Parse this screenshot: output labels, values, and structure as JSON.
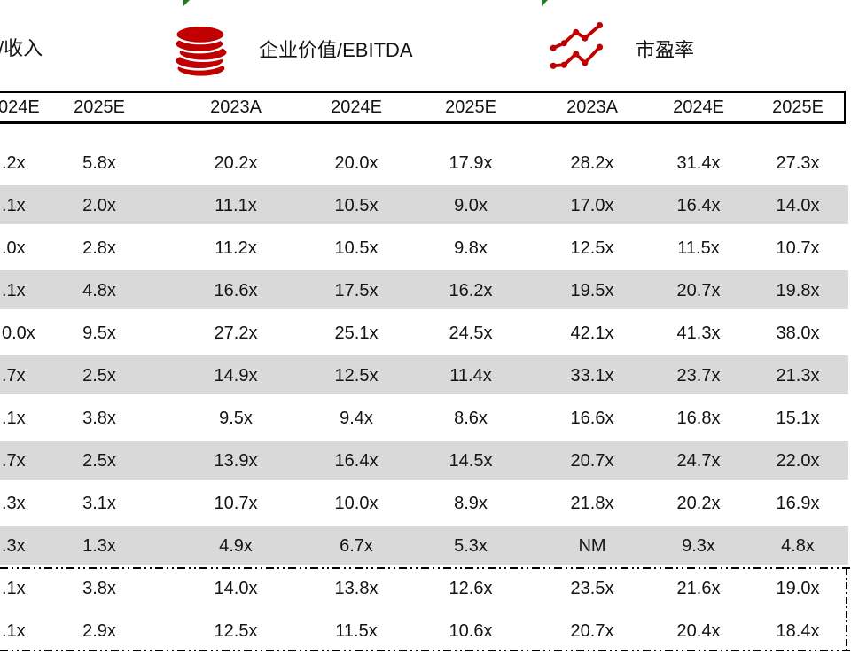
{
  "colors": {
    "accent_red": "#C00000",
    "row_stripe_gray": "#D9D9D9",
    "marker_green": "#1E7D1E",
    "line_black": "#000000",
    "text": "#141414"
  },
  "legend": {
    "partial_left_label": "/收入",
    "items": [
      {
        "icon": "coins-icon",
        "label": "企业价值/EBITDA"
      },
      {
        "icon": "line-chart-icon",
        "label": "市盈率"
      }
    ]
  },
  "table": {
    "headers": [
      "024E",
      "2025E",
      "2023A",
      "2024E",
      "2025E",
      "2023A",
      "2024E",
      "2025E"
    ],
    "rows": [
      [
        ".2x",
        "5.8x",
        "20.2x",
        "20.0x",
        "17.9x",
        "28.2x",
        "31.4x",
        "27.3x"
      ],
      [
        ".1x",
        "2.0x",
        "11.1x",
        "10.5x",
        "9.0x",
        "17.0x",
        "16.4x",
        "14.0x"
      ],
      [
        ".0x",
        "2.8x",
        "11.2x",
        "10.5x",
        "9.8x",
        "12.5x",
        "11.5x",
        "10.7x"
      ],
      [
        ".1x",
        "4.8x",
        "16.6x",
        "17.5x",
        "16.2x",
        "19.5x",
        "20.7x",
        "19.8x"
      ],
      [
        "0.0x",
        "9.5x",
        "27.2x",
        "25.1x",
        "24.5x",
        "42.1x",
        "41.3x",
        "38.0x"
      ],
      [
        ".7x",
        "2.5x",
        "14.9x",
        "12.5x",
        "11.4x",
        "33.1x",
        "23.7x",
        "21.3x"
      ],
      [
        ".1x",
        "3.8x",
        "9.5x",
        "9.4x",
        "8.6x",
        "16.6x",
        "16.8x",
        "15.1x"
      ],
      [
        ".7x",
        "2.5x",
        "13.9x",
        "16.4x",
        "14.5x",
        "20.7x",
        "24.7x",
        "22.0x"
      ],
      [
        ".3x",
        "3.1x",
        "10.7x",
        "10.0x",
        "8.9x",
        "21.8x",
        "20.2x",
        "16.9x"
      ],
      [
        ".3x",
        "1.3x",
        "4.9x",
        "6.7x",
        "5.3x",
        "NM",
        "9.3x",
        "4.8x"
      ],
      [
        ".1x",
        "3.8x",
        "14.0x",
        "13.8x",
        "12.6x",
        "23.5x",
        "21.6x",
        "19.0x"
      ],
      [
        ".1x",
        "2.9x",
        "12.5x",
        "11.5x",
        "10.6x",
        "20.7x",
        "20.4x",
        "18.4x"
      ]
    ],
    "striped_rows": [
      1,
      3,
      5,
      7,
      9
    ],
    "summary_rows": [
      10,
      11
    ]
  }
}
